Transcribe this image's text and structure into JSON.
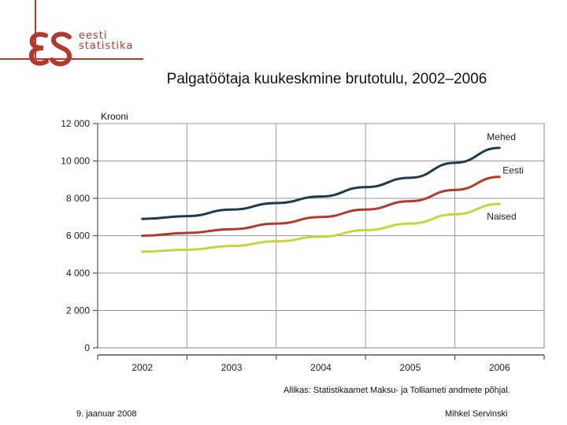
{
  "logo": {
    "mark": "ƐS",
    "line1": "eesti",
    "line2": "statistika",
    "accent": "#b03a2e"
  },
  "slide": {
    "title": "Palgatöötaja kuukeskmine brutotulu, 2002–2006",
    "source": "Allikas: Statistikaamet Maksu- ja Tolliameti andmete põhjal.",
    "date": "9. jaanuar 2008",
    "author": "Mihkel Servinski"
  },
  "chart_data": {
    "type": "line",
    "title": "Palgatöötaja kuukeskmine brutotulu, 2002–2006",
    "ylabel": "Krooni",
    "xlabel": "",
    "ylim": [
      0,
      12000
    ],
    "yticks": [
      0,
      2000,
      4000,
      6000,
      8000,
      10000,
      12000
    ],
    "ytick_labels": [
      "0",
      "2 000",
      "4 000",
      "6 000",
      "8 000",
      "10 000",
      "12 000"
    ],
    "categories": [
      "2002",
      "2003",
      "2004",
      "2005",
      "2006"
    ],
    "x": [
      2002,
      2003,
      2004,
      2005,
      2006
    ],
    "grid": true,
    "series": [
      {
        "name": "Mehed",
        "color": "#1f3a4d",
        "x": [
          2002,
          2002.5,
          2003,
          2003.5,
          2004,
          2004.5,
          2005,
          2005.5,
          2006
        ],
        "values": [
          6900,
          7050,
          7400,
          7750,
          8100,
          8600,
          9100,
          9900,
          10700
        ]
      },
      {
        "name": "Eesti",
        "color": "#b03a2e",
        "x": [
          2002,
          2002.5,
          2003,
          2003.5,
          2004,
          2004.5,
          2005,
          2005.5,
          2006
        ],
        "values": [
          6000,
          6150,
          6350,
          6650,
          7000,
          7400,
          7850,
          8450,
          9150
        ]
      },
      {
        "name": "Naised",
        "color": "#c8d43a",
        "x": [
          2002,
          2002.5,
          2003,
          2003.5,
          2004,
          2004.5,
          2005,
          2005.5,
          2006
        ],
        "values": [
          5150,
          5250,
          5450,
          5700,
          5950,
          6300,
          6650,
          7150,
          7700
        ]
      }
    ]
  }
}
